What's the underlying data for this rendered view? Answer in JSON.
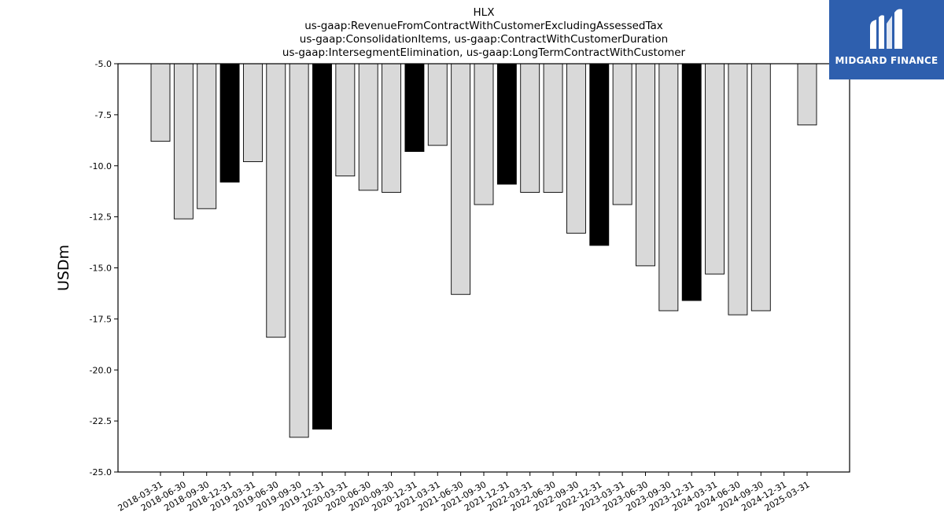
{
  "brand": {
    "name": "MIDGARD FINANCE",
    "logo_icon": "midgard-m-logo-icon",
    "color": "#2e5fae"
  },
  "chart_data": {
    "type": "bar",
    "title_lines": [
      "HLX",
      "us-gaap:RevenueFromContractWithCustomerExcludingAssessedTax",
      "us-gaap:ConsolidationItems, us-gaap:ContractWithCustomerDuration",
      "us-gaap:IntersegmentElimination, us-gaap:LongTermContractWithCustomer"
    ],
    "ylabel": "USDm",
    "xlabel": "",
    "ylim": [
      -25.0,
      -5.0
    ],
    "yticks": [
      "-5.0",
      "-7.5",
      "-10.0",
      "-12.5",
      "-15.0",
      "-17.5",
      "-20.0",
      "-22.5",
      "-25.0"
    ],
    "categories": [
      "2018-03-31",
      "2018-06-30",
      "2018-09-30",
      "2018-12-31",
      "2019-03-31",
      "2019-06-30",
      "2019-09-30",
      "2019-12-31",
      "2020-03-31",
      "2020-06-30",
      "2020-09-30",
      "2020-12-31",
      "2021-03-31",
      "2021-06-30",
      "2021-09-30",
      "2021-12-31",
      "2022-03-31",
      "2022-06-30",
      "2022-09-30",
      "2022-12-31",
      "2023-03-31",
      "2023-06-30",
      "2023-09-30",
      "2023-12-31",
      "2024-03-31",
      "2024-06-30",
      "2024-09-30",
      "2024-12-31",
      "2025-03-31"
    ],
    "values": [
      -8.8,
      -12.6,
      -12.1,
      -10.8,
      -9.8,
      -18.4,
      -23.3,
      -22.9,
      -10.5,
      -11.2,
      -11.3,
      -9.3,
      -9.0,
      -16.3,
      -11.9,
      -10.9,
      -11.3,
      -11.3,
      -13.3,
      -13.9,
      -11.9,
      -14.9,
      -17.1,
      -16.6,
      -15.3,
      -17.3,
      -17.1,
      null,
      -8.0
    ],
    "bar_colors": [
      "#d9d9d9",
      "#d9d9d9",
      "#d9d9d9",
      "#000000",
      "#d9d9d9",
      "#d9d9d9",
      "#d9d9d9",
      "#000000",
      "#d9d9d9",
      "#d9d9d9",
      "#d9d9d9",
      "#000000",
      "#d9d9d9",
      "#d9d9d9",
      "#d9d9d9",
      "#000000",
      "#d9d9d9",
      "#d9d9d9",
      "#d9d9d9",
      "#000000",
      "#d9d9d9",
      "#d9d9d9",
      "#d9d9d9",
      "#000000",
      "#d9d9d9",
      "#d9d9d9",
      "#d9d9d9",
      "#d9d9d9",
      "#d9d9d9"
    ],
    "grid": false,
    "legend": "none"
  }
}
